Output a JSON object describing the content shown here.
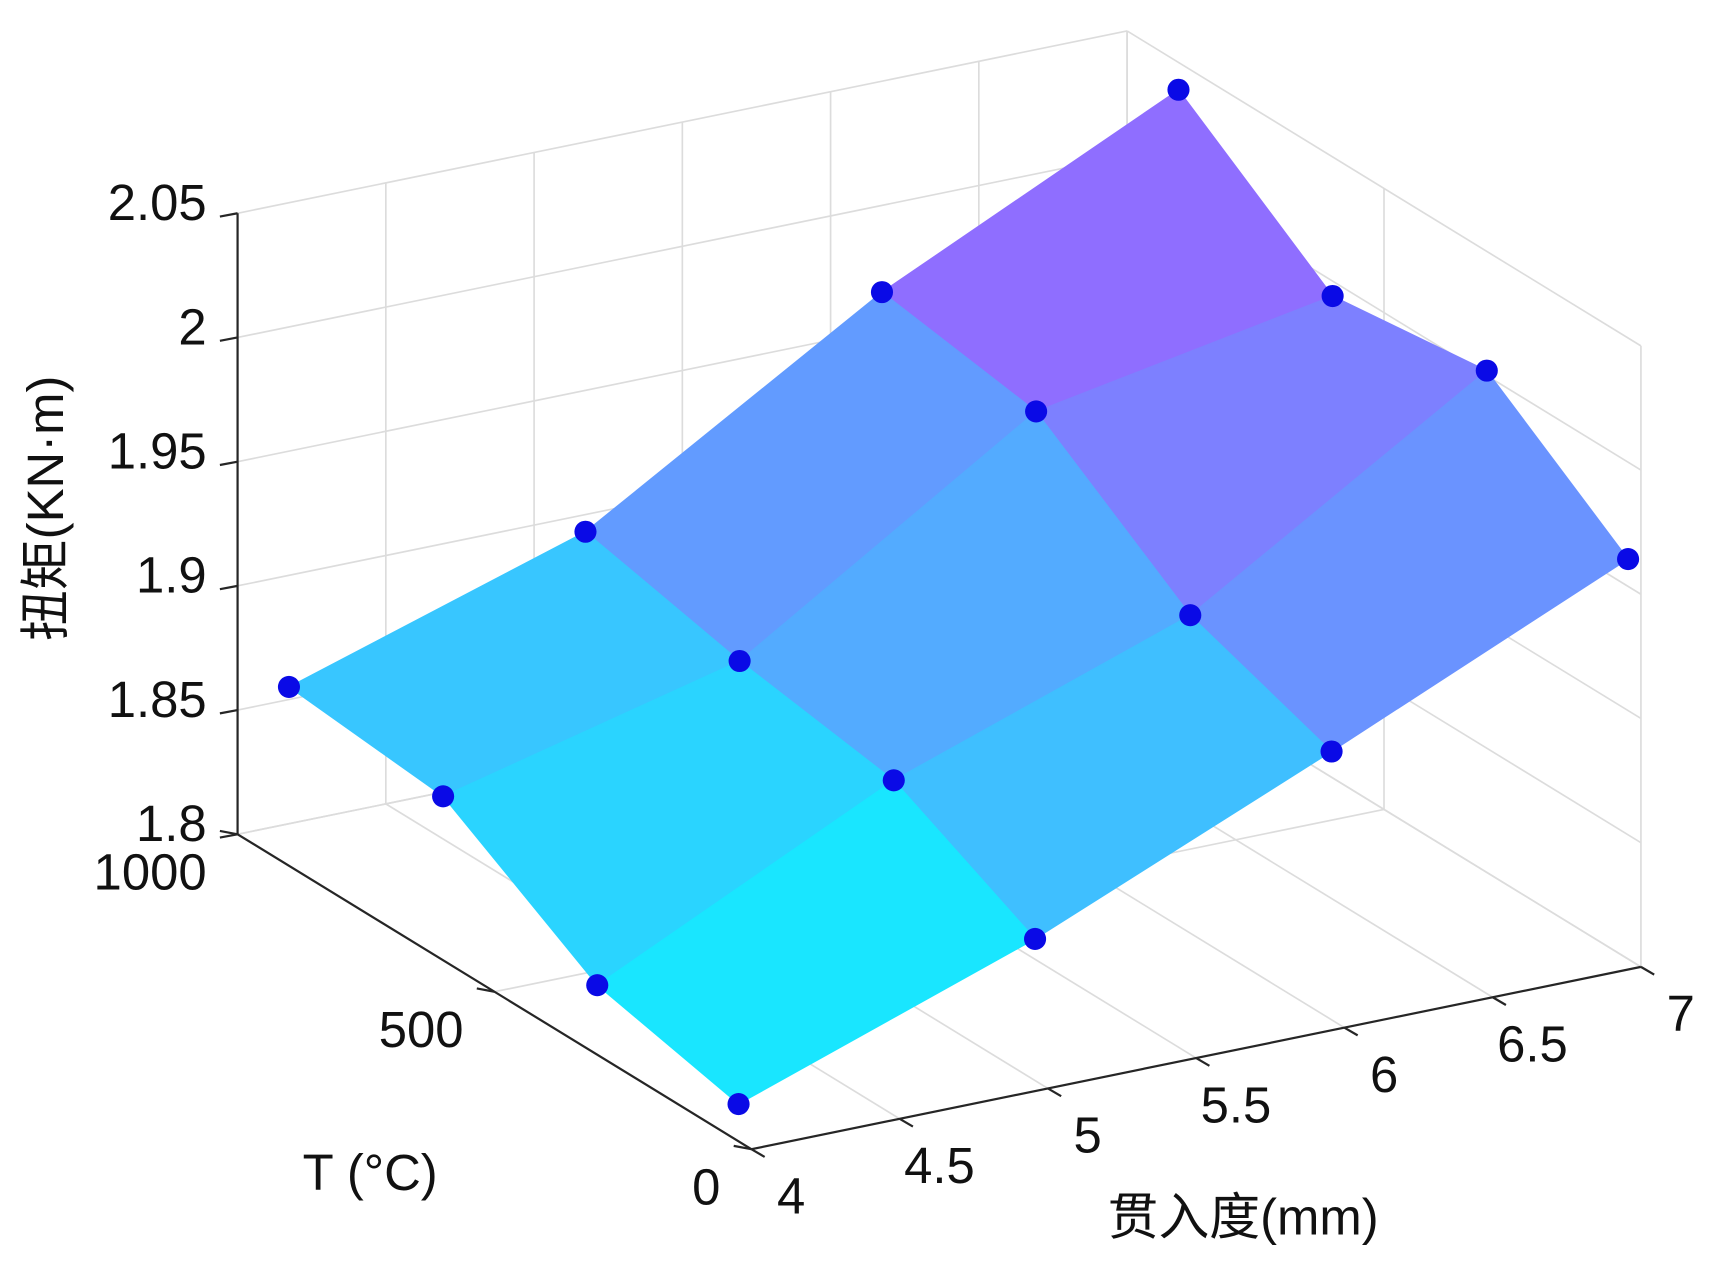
{
  "chart_data": {
    "type": "surface",
    "xlabel": "贯入度(mm)",
    "ylabel": "T (°C)",
    "zlabel": "扭矩(KN·m)",
    "x": [
      4,
      5,
      6,
      7
    ],
    "y": [
      25,
      300,
      600,
      900
    ],
    "z": [
      [
        1.815,
        1.857,
        1.908,
        1.961
      ],
      [
        1.828,
        1.886,
        1.928,
        2.002
      ],
      [
        1.866,
        1.896,
        1.972,
        1.994
      ],
      [
        1.872,
        1.91,
        1.982,
        2.039
      ]
    ],
    "xlim": [
      4,
      7
    ],
    "ylim": [
      0,
      1000
    ],
    "zlim": [
      1.8,
      2.05
    ],
    "xticks": [
      4,
      4.5,
      5,
      5.5,
      6,
      6.5,
      7
    ],
    "yticks": [
      0,
      500,
      1000
    ],
    "zticks": [
      1.8,
      1.85,
      1.9,
      1.95,
      2,
      2.05
    ],
    "grid": true,
    "colormap": [
      "#00ffff",
      "#b04cff"
    ],
    "marker_color": "#0a0ae6"
  }
}
